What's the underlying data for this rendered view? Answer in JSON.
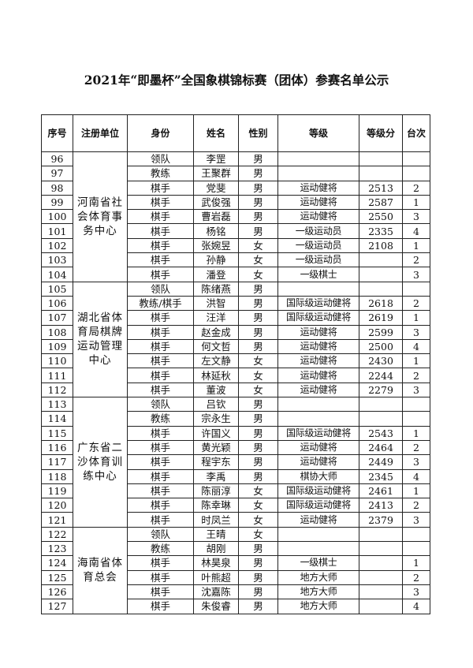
{
  "title": "2021年“即墨杯”全国象棋锦标赛（团体）参赛名单公示",
  "table": {
    "headers": [
      "序号",
      "注册单位",
      "身份",
      "姓名",
      "性别",
      "等级",
      "等级分",
      "台次"
    ],
    "groups": [
      {
        "unit": "河南省社会体育事务中心",
        "rows": [
          [
            "96",
            "领队",
            "李罡",
            "男",
            "",
            "",
            ""
          ],
          [
            "97",
            "教练",
            "王聚群",
            "男",
            "",
            "",
            ""
          ],
          [
            "98",
            "棋手",
            "党斐",
            "男",
            "运动健将",
            "2513",
            "2"
          ],
          [
            "99",
            "棋手",
            "武俊强",
            "男",
            "运动健将",
            "2587",
            "1"
          ],
          [
            "100",
            "棋手",
            "曹岩磊",
            "男",
            "运动健将",
            "2550",
            "3"
          ],
          [
            "101",
            "棋手",
            "杨铭",
            "男",
            "一级运动员",
            "2335",
            "4"
          ],
          [
            "102",
            "棋手",
            "张婉昱",
            "女",
            "一级运动员",
            "2108",
            "1"
          ],
          [
            "103",
            "棋手",
            "孙静",
            "女",
            "一级运动员",
            "",
            "2"
          ],
          [
            "104",
            "棋手",
            "潘登",
            "女",
            "一级棋士",
            "",
            "3"
          ]
        ]
      },
      {
        "unit": "湖北省体育局棋牌运动管理中心",
        "rows": [
          [
            "105",
            "领队",
            "陈绪燕",
            "男",
            "",
            "",
            ""
          ],
          [
            "106",
            "教练/棋手",
            "洪智",
            "男",
            "国际级运动健将",
            "2618",
            "2"
          ],
          [
            "107",
            "棋手",
            "汪洋",
            "男",
            "国际级运动健将",
            "2619",
            "1"
          ],
          [
            "108",
            "棋手",
            "赵金成",
            "男",
            "运动健将",
            "2599",
            "3"
          ],
          [
            "109",
            "棋手",
            "何文哲",
            "男",
            "运动健将",
            "2500",
            "4"
          ],
          [
            "110",
            "棋手",
            "左文静",
            "女",
            "运动健将",
            "2430",
            "1"
          ],
          [
            "111",
            "棋手",
            "林延秋",
            "女",
            "运动健将",
            "2244",
            "2"
          ],
          [
            "112",
            "棋手",
            "董波",
            "女",
            "运动健将",
            "2279",
            "3"
          ]
        ]
      },
      {
        "unit": "广东省二沙体育训练中心",
        "rows": [
          [
            "113",
            "领队",
            "吕钦",
            "男",
            "",
            "",
            ""
          ],
          [
            "114",
            "教练",
            "宗永生",
            "男",
            "",
            "",
            ""
          ],
          [
            "115",
            "棋手",
            "许国义",
            "男",
            "国际级运动健将",
            "2543",
            "1"
          ],
          [
            "116",
            "棋手",
            "黄光颖",
            "男",
            "运动健将",
            "2464",
            "2"
          ],
          [
            "117",
            "棋手",
            "程宇东",
            "男",
            "运动健将",
            "2449",
            "3"
          ],
          [
            "118",
            "棋手",
            "李禹",
            "男",
            "棋协大师",
            "2345",
            "4"
          ],
          [
            "119",
            "棋手",
            "陈丽淳",
            "女",
            "国际级运动健将",
            "2461",
            "1"
          ],
          [
            "120",
            "棋手",
            "陈幸琳",
            "女",
            "国际级运动健将",
            "2413",
            "2"
          ],
          [
            "121",
            "棋手",
            "时凤兰",
            "女",
            "运动健将",
            "2379",
            "3"
          ]
        ]
      },
      {
        "unit": "海南省体育总会",
        "rows": [
          [
            "122",
            "领队",
            "王晴",
            "女",
            "",
            "",
            ""
          ],
          [
            "123",
            "教练",
            "胡刚",
            "男",
            "",
            "",
            ""
          ],
          [
            "124",
            "棋手",
            "林昊泉",
            "男",
            "一级棋士",
            "",
            "1"
          ],
          [
            "125",
            "棋手",
            "叶熊超",
            "男",
            "地方大师",
            "",
            "2"
          ],
          [
            "126",
            "棋手",
            "沈嘉陈",
            "男",
            "地方大师",
            "",
            "3"
          ],
          [
            "127",
            "棋手",
            "朱俊睿",
            "男",
            "地方大师",
            "",
            "4"
          ]
        ]
      }
    ]
  }
}
